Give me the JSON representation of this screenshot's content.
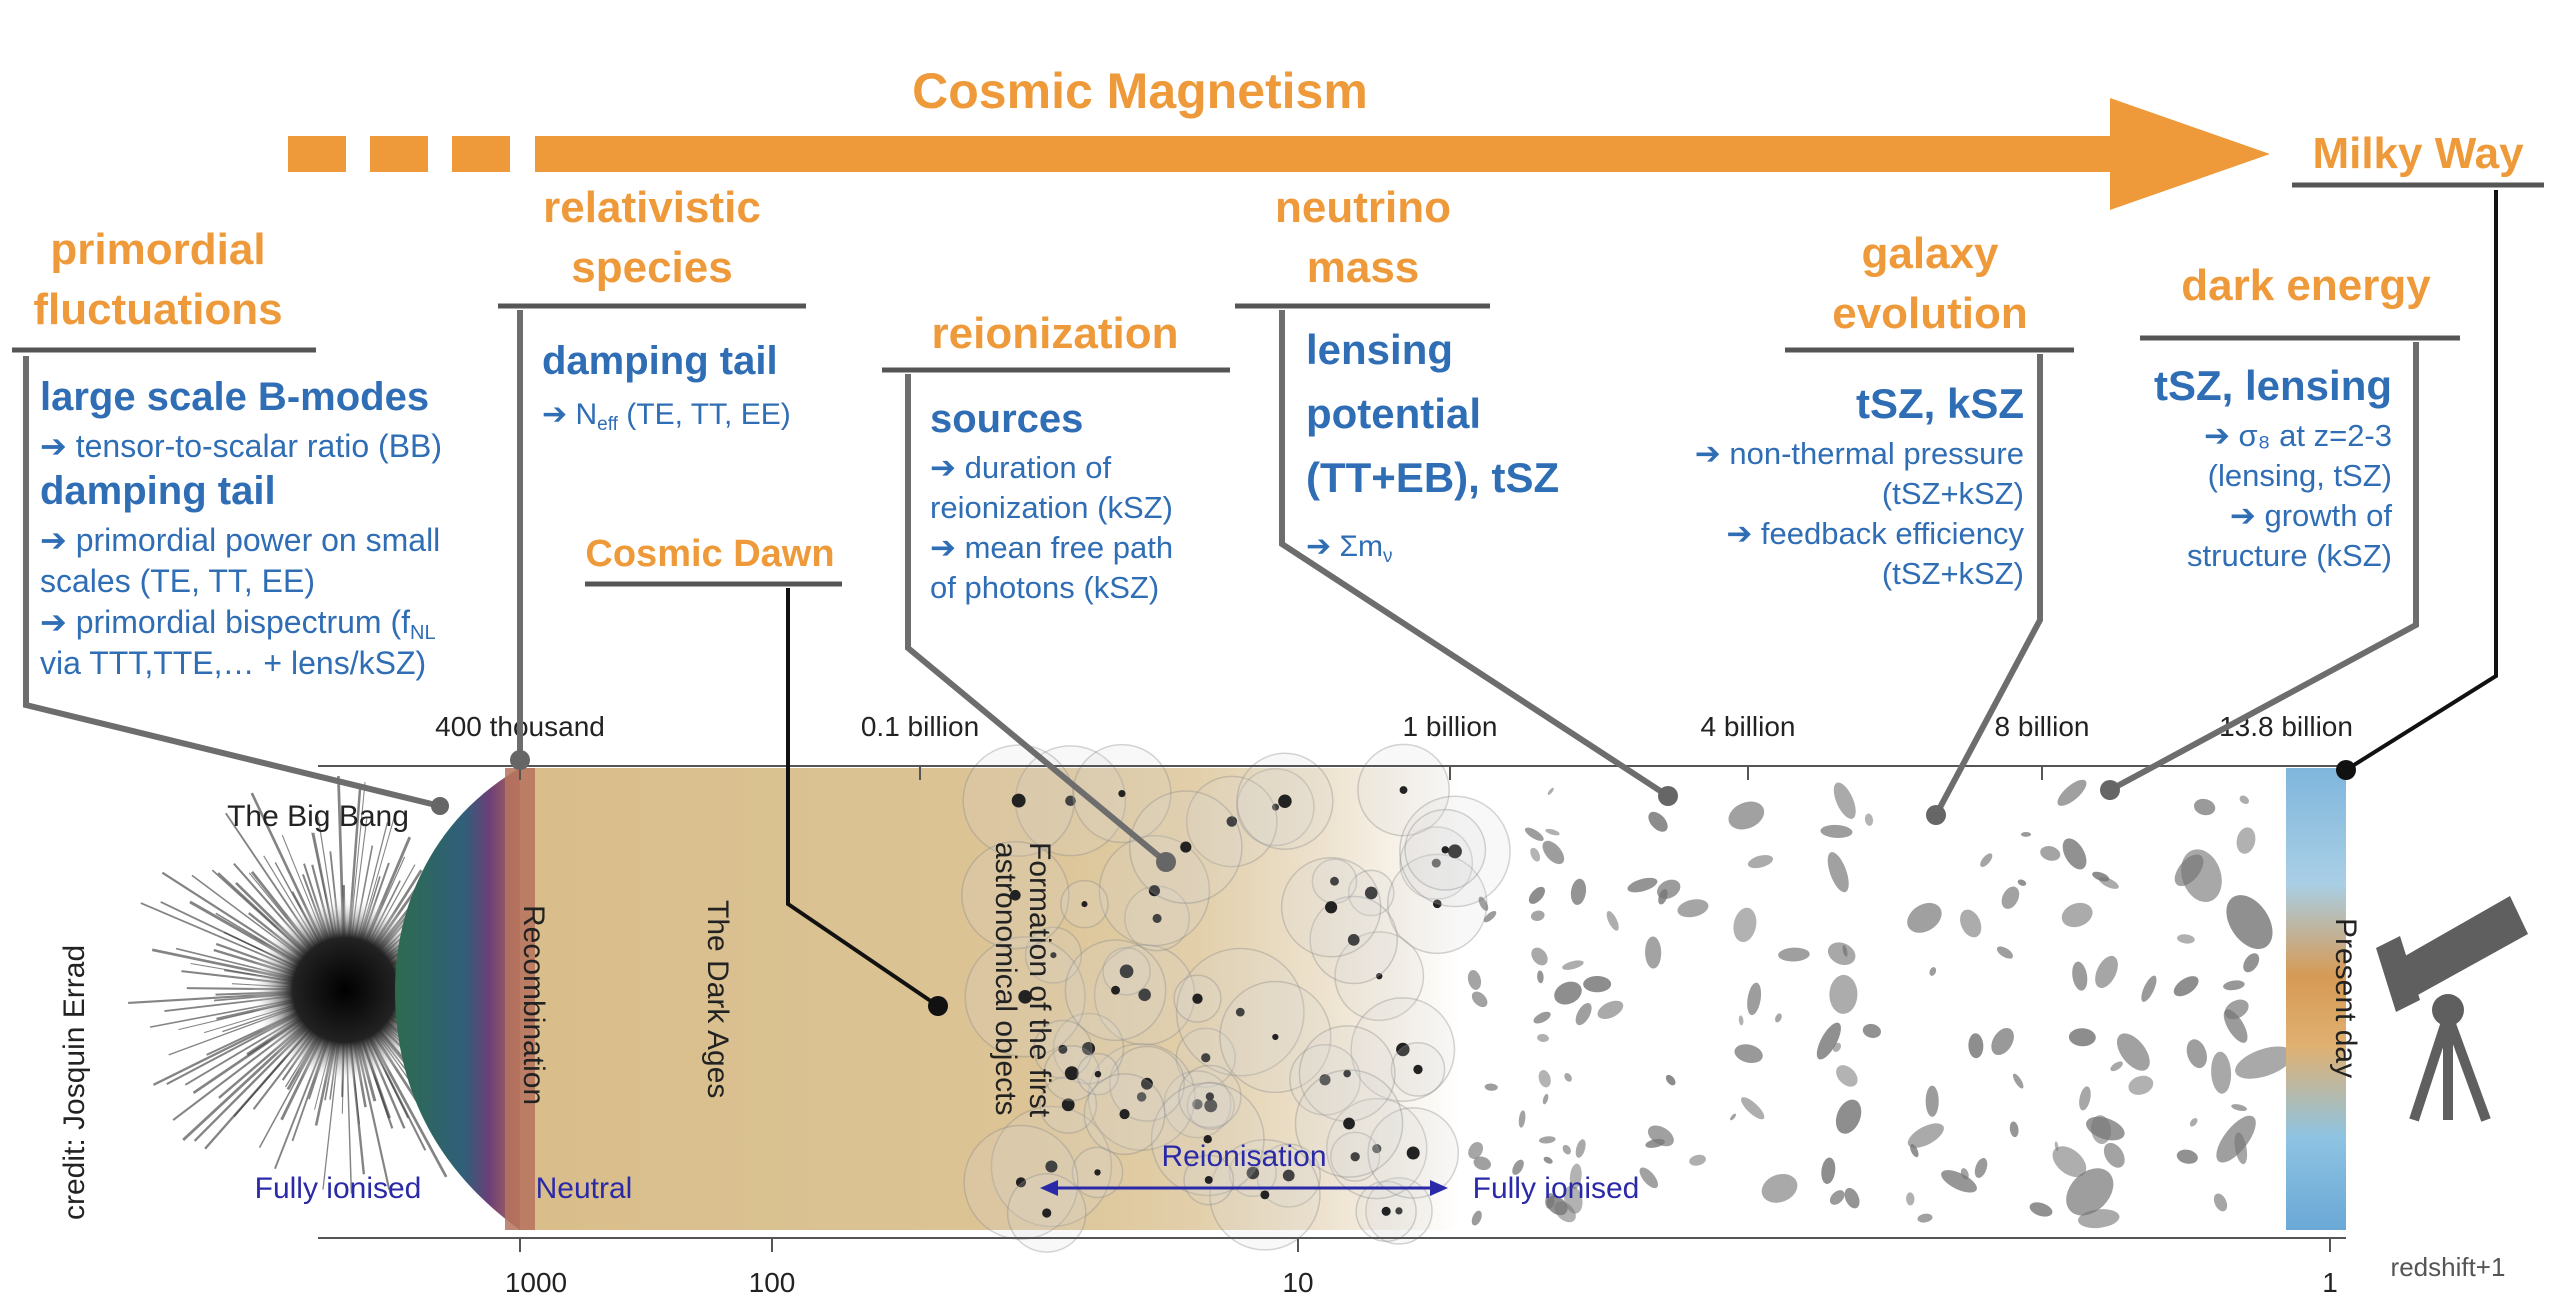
{
  "title": "Cosmic Magnetism",
  "milky_way": "Milky Way",
  "credit": "credit: Josquin Errad",
  "topics": {
    "primordial": {
      "heading": [
        "primordial",
        "fluctuations"
      ],
      "lines": [
        {
          "t": "large scale B-modes",
          "b": true
        },
        {
          "t": "➔ tensor-to-scalar ratio (BB)",
          "b": false
        },
        {
          "t": "damping tail",
          "b": true
        },
        {
          "t": "➔ primordial power on small",
          "b": false
        },
        {
          "t": "scales (TE, TT, EE)",
          "b": false
        },
        {
          "t": "➔ primordial bispectrum (f",
          "b": false,
          "sub": "NL"
        },
        {
          "t": "via TTT,TTE,… + lens/kSZ)",
          "b": false
        }
      ]
    },
    "relativistic": {
      "heading": [
        "relativistic",
        "species"
      ],
      "lines": [
        {
          "t": "damping tail",
          "b": true
        },
        {
          "t": "➔ N",
          "b": false,
          "sub": "eff",
          "tail": " (TE, TT, EE)"
        }
      ]
    },
    "reionization": {
      "heading": [
        "reionization"
      ],
      "lines": [
        {
          "t": "sources",
          "b": true
        },
        {
          "t": "➔ duration of",
          "b": false
        },
        {
          "t": "reionization (kSZ)",
          "b": false
        },
        {
          "t": "➔ mean free path",
          "b": false
        },
        {
          "t": "of photons (kSZ)",
          "b": false
        }
      ]
    },
    "neutrino": {
      "heading": [
        "neutrino",
        "mass"
      ],
      "lines": [
        {
          "t": "lensing",
          "b": true
        },
        {
          "t": "potential",
          "b": true
        },
        {
          "t": "(TT+EB), tSZ",
          "b": true
        },
        {
          "t": "➔ Σm",
          "b": false,
          "sub": "ν"
        }
      ]
    },
    "galaxy": {
      "heading": [
        "galaxy",
        "evolution"
      ],
      "lines": [
        {
          "t": "tSZ, kSZ",
          "b": true
        },
        {
          "t": "➔ non-thermal pressure",
          "b": false
        },
        {
          "t": "(tSZ+kSZ)",
          "b": false
        },
        {
          "t": "➔ feedback efficiency",
          "b": false
        },
        {
          "t": "(tSZ+kSZ)",
          "b": false
        }
      ]
    },
    "darkenergy": {
      "heading": [
        "dark energy"
      ],
      "lines": [
        {
          "t": "tSZ, lensing",
          "b": true
        },
        {
          "t": "➔ σ₈ at z=2-3",
          "b": false
        },
        {
          "t": "(lensing, tSZ)",
          "b": false
        },
        {
          "t": "➔ growth of",
          "b": false
        },
        {
          "t": "structure (kSZ)",
          "b": false
        }
      ]
    },
    "cosmic_dawn": "Cosmic Dawn"
  },
  "time_axis": {
    "ticks": [
      "400 thousand",
      "0.1 billion",
      "1 billion",
      "4 billion",
      "8 billion",
      "13.8 billion"
    ]
  },
  "redshift_axis": {
    "ticks": [
      "1000",
      "100",
      "10",
      "1"
    ],
    "label": "redshift+1"
  },
  "eras": {
    "big_bang": "The Big Bang",
    "recombination": "Recombination",
    "dark_ages": "The Dark Ages",
    "formation": [
      "Formation of the first",
      "astronomical objects"
    ],
    "present_day": "Present day"
  },
  "ionisation": {
    "fully_ionised_left": "Fully ionised",
    "neutral": "Neutral",
    "reionisation": "Reionisation",
    "fully_ionised_right": "Fully ionised"
  },
  "colors": {
    "orange": "#EE9A3A",
    "blue": "#2F6DB5",
    "dark_ages": "#D8BD8A",
    "leader": "#6d6d6d"
  },
  "icons": [
    "telescope-icon"
  ]
}
